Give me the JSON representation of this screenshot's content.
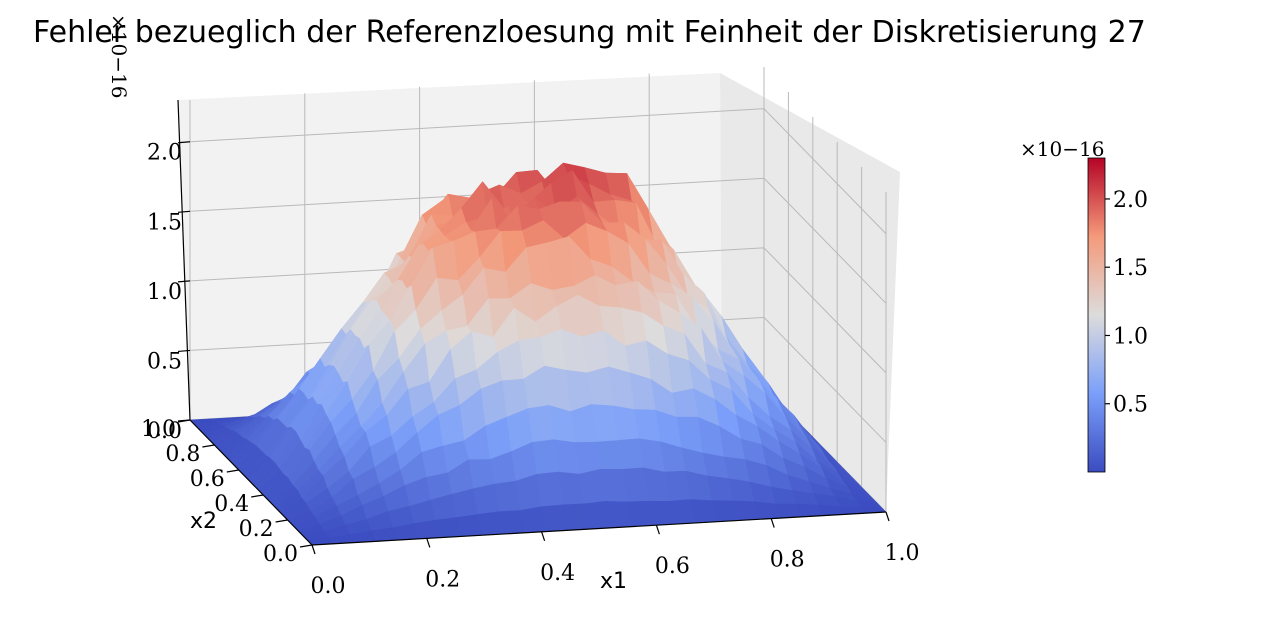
{
  "chart_data": {
    "type": "surface",
    "title": "Fehler bezueglich der Referenzloesung mit Feinheit der Diskretisierung 27",
    "xlabel": "x1",
    "ylabel": "x2",
    "zlabel": "",
    "xlim": [
      0.0,
      1.0
    ],
    "ylim": [
      0.0,
      1.0
    ],
    "zlim": [
      0.0,
      2.3
    ],
    "z_scale_label": "×10−16",
    "x_ticks": [
      "0.0",
      "0.2",
      "0.4",
      "0.6",
      "0.8",
      "1.0"
    ],
    "y_ticks": [
      "0.0",
      "0.2",
      "0.4",
      "0.6",
      "0.8",
      "1.0"
    ],
    "z_ticks": [
      "0.0",
      "0.5",
      "1.0",
      "1.5",
      "2.0"
    ],
    "colormap": "coolwarm",
    "colorbar": {
      "ticks": [
        "0.5",
        "1.0",
        "1.5",
        "2.0"
      ],
      "range": [
        0.0,
        2.3
      ],
      "label": "×10−16"
    },
    "grid": true,
    "surface_description": "error surface ≈ 0 on the boundary of the unit square, maximum about 2.3e-16 near x1 ≈ 0.4, x2 ≈ 0.6"
  }
}
